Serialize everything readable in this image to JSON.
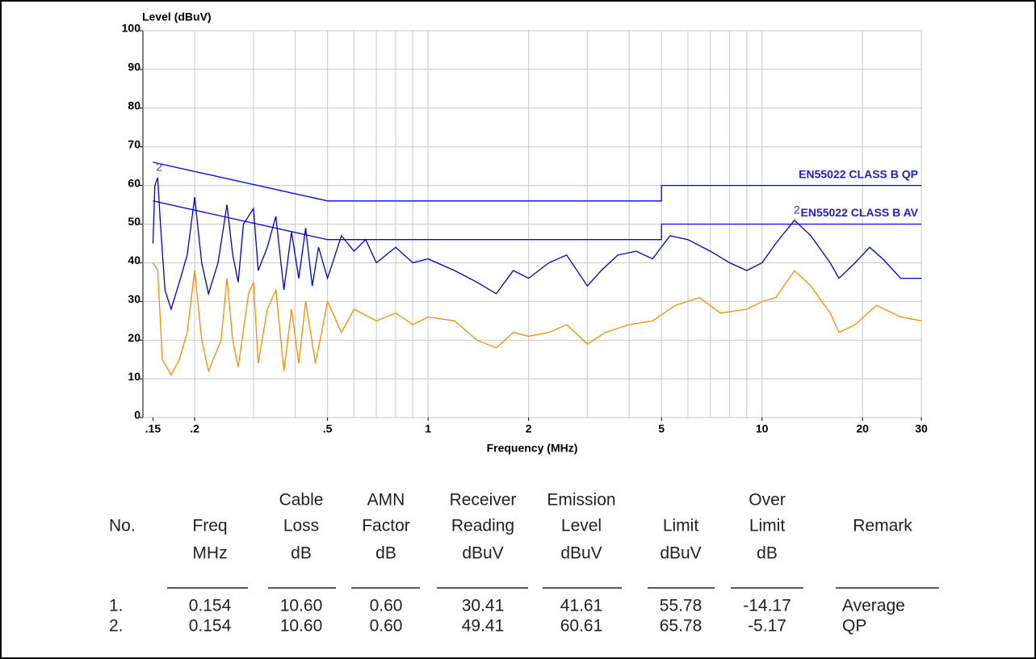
{
  "chart_data": {
    "type": "line",
    "ylabel": "Level (dBuV)",
    "xlabel": "Frequency (MHz)",
    "xlim": [
      0.14,
      30
    ],
    "ylim": [
      0,
      100
    ],
    "xlog": true,
    "grid": true,
    "yticks": [
      0,
      10,
      20,
      30,
      40,
      50,
      60,
      70,
      80,
      90,
      100
    ],
    "xticks": [
      {
        "value": 0.15,
        "label": ".15"
      },
      {
        "value": 0.2,
        "label": ".2"
      },
      {
        "value": 0.5,
        "label": ".5"
      },
      1,
      2,
      5,
      10,
      20,
      30
    ],
    "xgrid": [
      0.2,
      0.3,
      0.4,
      0.5,
      0.6,
      0.7,
      0.8,
      0.9,
      1,
      2,
      3,
      4,
      5,
      6,
      7,
      8,
      9,
      10,
      20,
      30
    ],
    "series": [
      {
        "name": "EN55022  CLASS B QP",
        "color": "#0000ff",
        "width": 1.3,
        "x": [
          0.15,
          0.5,
          5,
          5,
          30
        ],
        "values": [
          66,
          56,
          56,
          60,
          60
        ]
      },
      {
        "name": "EN55022 CLASS B AV",
        "color": "#0000ff",
        "width": 1.3,
        "x": [
          0.15,
          0.5,
          5,
          5,
          30
        ],
        "values": [
          56,
          46,
          46,
          50,
          50
        ]
      },
      {
        "color": "#0000cc",
        "width": 1.3,
        "x": [
          0.15,
          0.152,
          0.155,
          0.158,
          0.163,
          0.17,
          0.18,
          0.19,
          0.2,
          0.21,
          0.22,
          0.235,
          0.25,
          0.26,
          0.27,
          0.28,
          0.3,
          0.31,
          0.33,
          0.35,
          0.37,
          0.39,
          0.41,
          0.43,
          0.45,
          0.47,
          0.5,
          0.55,
          0.6,
          0.65,
          0.7,
          0.8,
          0.9,
          1.0,
          1.2,
          1.4,
          1.6,
          1.8,
          2.0,
          2.3,
          2.6,
          3.0,
          3.3,
          3.7,
          4.2,
          4.7,
          5.3,
          6,
          7,
          8,
          9,
          10,
          11,
          12.5,
          14,
          16,
          17,
          19,
          21,
          23,
          26,
          30
        ],
        "values": [
          45,
          60,
          62,
          50,
          33,
          28,
          35,
          42,
          57,
          40,
          32,
          40,
          55,
          42,
          35,
          50,
          54,
          38,
          44,
          52,
          33,
          48,
          36,
          49,
          34,
          44,
          36,
          47,
          43,
          46,
          40,
          44,
          40,
          41,
          38,
          35,
          32,
          38,
          36,
          40,
          42,
          34,
          38,
          42,
          43,
          41,
          47,
          46,
          43,
          40,
          38,
          40,
          45,
          51,
          47,
          40,
          36,
          40,
          44,
          41,
          36,
          36
        ]
      },
      {
        "color": "#ff8c00",
        "width": 1.3,
        "x": [
          0.15,
          0.155,
          0.16,
          0.17,
          0.18,
          0.19,
          0.2,
          0.21,
          0.22,
          0.24,
          0.25,
          0.26,
          0.27,
          0.29,
          0.3,
          0.31,
          0.33,
          0.35,
          0.37,
          0.39,
          0.41,
          0.43,
          0.46,
          0.5,
          0.55,
          0.6,
          0.7,
          0.8,
          0.9,
          1.0,
          1.2,
          1.4,
          1.6,
          1.8,
          2.0,
          2.3,
          2.6,
          3.0,
          3.4,
          4.0,
          4.7,
          5.5,
          6.5,
          7.5,
          9,
          10,
          11,
          12.5,
          14,
          16,
          17,
          19,
          22,
          26,
          30
        ],
        "values": [
          40,
          38,
          15,
          11,
          15,
          22,
          38,
          20,
          12,
          20,
          36,
          20,
          13,
          32,
          35,
          14,
          28,
          33,
          12,
          28,
          14,
          30,
          14,
          30,
          22,
          28,
          25,
          27,
          24,
          26,
          25,
          20,
          18,
          22,
          21,
          22,
          24,
          19,
          22,
          24,
          25,
          29,
          31,
          27,
          28,
          30,
          31,
          38,
          34,
          27,
          22,
          24,
          29,
          26,
          25
        ]
      }
    ],
    "annotations": [
      {
        "text": "2",
        "x": 0.154,
        "y": 62
      },
      {
        "text": "2",
        "x": 12.5,
        "y": 51
      }
    ]
  },
  "table": {
    "columns": [
      [
        "No."
      ],
      [
        "Freq",
        "MHz"
      ],
      [
        "Cable",
        "Loss",
        "dB"
      ],
      [
        "AMN",
        "Factor",
        "dB"
      ],
      [
        "Receiver",
        "Reading",
        "dBuV"
      ],
      [
        "Emission",
        "Level",
        "dBuV"
      ],
      [
        "Limit",
        "dBuV"
      ],
      [
        "Over",
        "Limit",
        "dB"
      ],
      [
        "Remark"
      ]
    ],
    "rows": [
      [
        "1.",
        "0.154",
        "10.60",
        "0.60",
        "30.41",
        "41.61",
        "55.78",
        "-14.17",
        "Average"
      ],
      [
        "2.",
        "0.154",
        "10.60",
        "0.60",
        "49.41",
        "60.61",
        "65.78",
        "-5.17",
        "QP"
      ]
    ]
  }
}
